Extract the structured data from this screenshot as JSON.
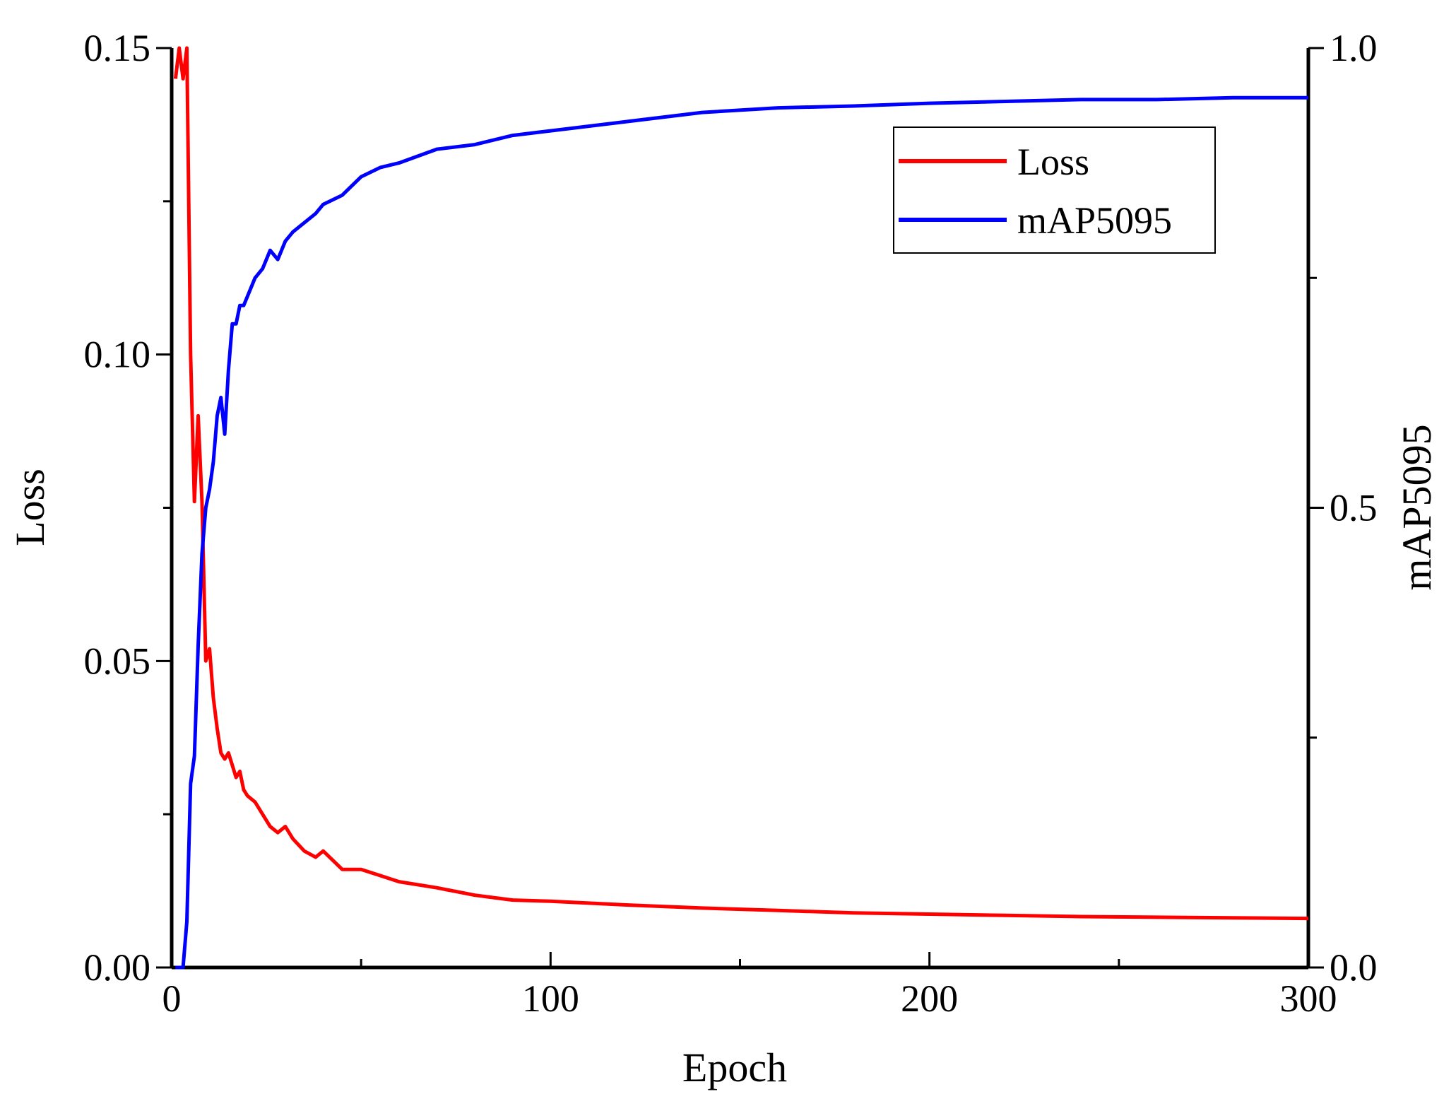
{
  "chart_data": {
    "type": "line",
    "title": "",
    "xlabel": "Epoch",
    "ylabel_left": "Loss",
    "ylabel_right": "mAP5095",
    "xlim": [
      0,
      300
    ],
    "ylim_left": [
      0,
      0.15
    ],
    "ylim_right": [
      0,
      1.0
    ],
    "x_ticks": [
      "0",
      "100",
      "200",
      "300"
    ],
    "y_left_ticks": [
      "0.00",
      "0.05",
      "0.10",
      "0.15"
    ],
    "y_right_ticks": [
      "0.0",
      "0.5",
      "1.0"
    ],
    "grid": false,
    "legend_position": "top-right",
    "series": [
      {
        "name": "Loss",
        "axis": "left",
        "color": "#ff0000",
        "x": [
          1,
          2,
          3,
          4,
          5,
          6,
          7,
          8,
          9,
          10,
          11,
          12,
          13,
          14,
          15,
          16,
          17,
          18,
          19,
          20,
          22,
          24,
          26,
          28,
          30,
          32,
          35,
          38,
          40,
          45,
          50,
          55,
          60,
          70,
          80,
          90,
          100,
          120,
          140,
          160,
          180,
          200,
          220,
          240,
          260,
          280,
          300
        ],
        "y": [
          0.145,
          0.15,
          0.145,
          0.15,
          0.1,
          0.076,
          0.09,
          0.076,
          0.05,
          0.052,
          0.044,
          0.039,
          0.035,
          0.034,
          0.035,
          0.033,
          0.031,
          0.032,
          0.029,
          0.028,
          0.027,
          0.025,
          0.023,
          0.022,
          0.023,
          0.021,
          0.019,
          0.018,
          0.019,
          0.016,
          0.016,
          0.015,
          0.014,
          0.013,
          0.0118,
          0.011,
          0.0108,
          0.0102,
          0.0097,
          0.0093,
          0.0089,
          0.0087,
          0.0085,
          0.0083,
          0.0082,
          0.0081,
          0.008
        ]
      },
      {
        "name": "mAP5095",
        "axis": "right",
        "color": "#0000ff",
        "x": [
          1,
          2,
          3,
          4,
          5,
          6,
          7,
          8,
          9,
          10,
          11,
          12,
          13,
          14,
          15,
          16,
          17,
          18,
          19,
          20,
          22,
          24,
          26,
          28,
          30,
          32,
          35,
          38,
          40,
          45,
          50,
          55,
          60,
          70,
          80,
          90,
          100,
          120,
          140,
          160,
          180,
          200,
          220,
          240,
          260,
          280,
          300
        ],
        "y": [
          0.0,
          0.0,
          0.0,
          0.05,
          0.2,
          0.23,
          0.35,
          0.45,
          0.5,
          0.52,
          0.55,
          0.6,
          0.62,
          0.58,
          0.65,
          0.7,
          0.7,
          0.72,
          0.72,
          0.73,
          0.75,
          0.76,
          0.78,
          0.77,
          0.79,
          0.8,
          0.81,
          0.82,
          0.83,
          0.84,
          0.86,
          0.87,
          0.875,
          0.89,
          0.895,
          0.905,
          0.91,
          0.92,
          0.93,
          0.935,
          0.937,
          0.94,
          0.942,
          0.944,
          0.944,
          0.946,
          0.946
        ]
      }
    ]
  }
}
